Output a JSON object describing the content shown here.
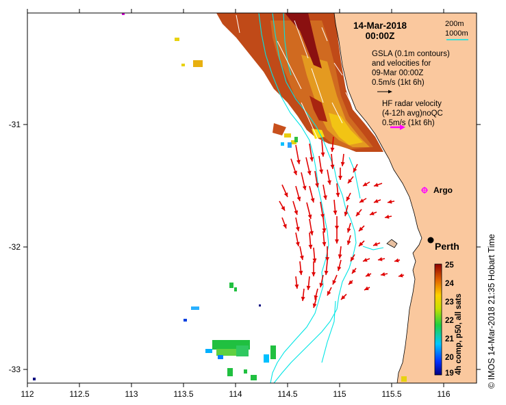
{
  "map": {
    "date": "14-Mar-2018",
    "time": "00:00Z",
    "contour_labels": [
      "200m",
      "1000m"
    ],
    "gsla_text": [
      "GSLA (0.1m contours)",
      "and velocities for",
      "09-Mar 00:00Z",
      "0.5m/s (1kt 6h)"
    ],
    "hf_text": [
      "HF radar velocity",
      "(4-12h avg)noQC",
      "0.5m/s (1kt 6h)"
    ],
    "places": {
      "argo": "Argo",
      "perth": "Perth"
    },
    "x_ticks": [
      "112",
      "112.5",
      "113",
      "113.5",
      "114",
      "114.5",
      "115",
      "115.5",
      "116"
    ],
    "y_ticks": [
      "-31",
      "-32",
      "-33"
    ],
    "colorbar": {
      "label": "4h comp, p50, all sats",
      "ticks": [
        "25",
        "24",
        "23",
        "22",
        "21",
        "20",
        "19"
      ],
      "min": 19,
      "max": 25
    },
    "credit": "© IMOS 14-Mar-2018 21:35 Hobart Time",
    "colors": {
      "land": "#fac89e",
      "contour": "#00e5e5",
      "hf_arrow": "#e00000",
      "legend_hf": "#ff00ff",
      "argo": "#ff00ff"
    }
  }
}
